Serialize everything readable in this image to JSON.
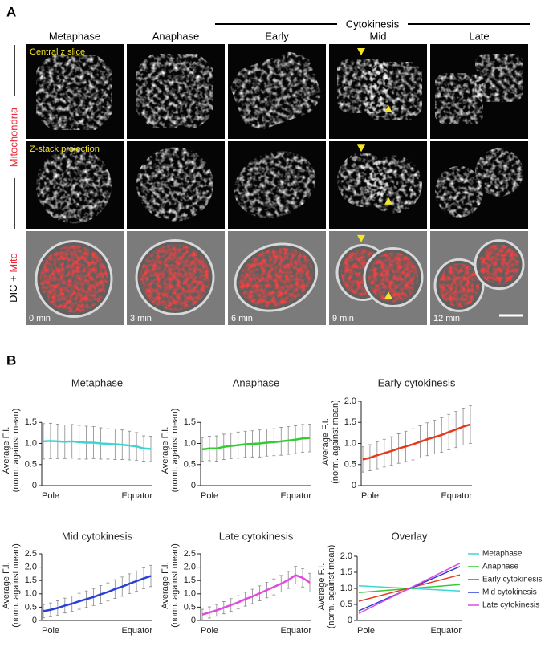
{
  "panel_a": {
    "label": "A",
    "group_label": "Cytokinesis",
    "columns": [
      "Metaphase",
      "Anaphase",
      "Early",
      "Mid",
      "Late"
    ],
    "row_label_mito": "Mitochondria",
    "row_label_dic": "DIC +",
    "row_label_dic_mito": "Mito",
    "overlay_labels": [
      "Central z slice",
      "Z-stack projection"
    ],
    "times": [
      "0 min",
      "3 min",
      "6 min",
      "9 min",
      "12 min"
    ]
  },
  "panel_b": {
    "label": "B"
  },
  "chart_data": [
    {
      "type": "line",
      "title": "Metaphase",
      "ylabel": [
        "Average F.I.",
        "(norm. against mean)"
      ],
      "x_start_label": "Pole",
      "x_end_label": "Equator",
      "ylim": [
        0,
        1.6
      ],
      "yticks": [
        0,
        0.5,
        {
          "value": 1,
          "label": "1.0"
        },
        1.5
      ],
      "series": [
        {
          "name": "Metaphase",
          "color": "#3fd4d4",
          "values": [
            1.05,
            1.06,
            1.05,
            1.04,
            1.05,
            1.03,
            1.02,
            1.02,
            1.0,
            0.99,
            0.98,
            0.97,
            0.95,
            0.93,
            0.88,
            0.87
          ],
          "errors": [
            0.42,
            0.42,
            0.41,
            0.4,
            0.4,
            0.4,
            0.39,
            0.38,
            0.37,
            0.36,
            0.36,
            0.35,
            0.34,
            0.33,
            0.3,
            0.3
          ]
        }
      ]
    },
    {
      "type": "line",
      "title": "Anaphase",
      "ylabel": [
        "Average F.I.",
        "(norm. against mean)"
      ],
      "x_start_label": "Pole",
      "x_end_label": "Equator",
      "ylim": [
        0,
        1.6
      ],
      "yticks": [
        0,
        0.5,
        {
          "value": 1,
          "label": "1.0"
        },
        1.5
      ],
      "series": [
        {
          "name": "Anaphase",
          "color": "#33cc33",
          "values": [
            0.86,
            0.88,
            0.88,
            0.92,
            0.94,
            0.96,
            0.98,
            0.99,
            1.0,
            1.02,
            1.03,
            1.05,
            1.07,
            1.09,
            1.12,
            1.13
          ],
          "errors": [
            0.28,
            0.29,
            0.3,
            0.3,
            0.3,
            0.31,
            0.31,
            0.31,
            0.32,
            0.32,
            0.32,
            0.33,
            0.33,
            0.33,
            0.33,
            0.33
          ]
        }
      ]
    },
    {
      "type": "line",
      "title": "Early cytokinesis",
      "ylabel": [
        "Average F.I.",
        "(norm. against mean)"
      ],
      "x_start_label": "Pole",
      "x_end_label": "Equator",
      "ylim": [
        0,
        2
      ],
      "yticks": [
        0,
        0.5,
        {
          "value": 1,
          "label": "1.0"
        },
        1.5,
        {
          "value": 2,
          "label": "2.0"
        }
      ],
      "series": [
        {
          "name": "Early cytokinesis",
          "color": "#e53a1e",
          "values": [
            0.62,
            0.66,
            0.72,
            0.77,
            0.82,
            0.88,
            0.93,
            0.98,
            1.04,
            1.1,
            1.15,
            1.2,
            1.27,
            1.33,
            1.4,
            1.45
          ],
          "errors": [
            0.3,
            0.31,
            0.32,
            0.33,
            0.34,
            0.35,
            0.36,
            0.37,
            0.38,
            0.39,
            0.4,
            0.41,
            0.42,
            0.43,
            0.44,
            0.45
          ]
        }
      ]
    },
    {
      "type": "line",
      "title": "Mid cytokinesis",
      "ylabel": [
        "Average F.I.",
        "(norm. against mean)"
      ],
      "x_start_label": "Pole",
      "x_end_label": "Equator",
      "ylim": [
        0,
        2.5
      ],
      "yticks": [
        0,
        0.5,
        {
          "value": 1,
          "label": "1.0"
        },
        1.5,
        {
          "value": 2,
          "label": "2.0"
        },
        2.5
      ],
      "series": [
        {
          "name": "Mid cytokinesis",
          "color": "#2a3fd8",
          "values": [
            0.35,
            0.4,
            0.47,
            0.56,
            0.63,
            0.72,
            0.8,
            0.88,
            0.98,
            1.07,
            1.18,
            1.27,
            1.38,
            1.48,
            1.58,
            1.67
          ],
          "errors": [
            0.25,
            0.26,
            0.27,
            0.28,
            0.29,
            0.3,
            0.31,
            0.32,
            0.33,
            0.34,
            0.35,
            0.36,
            0.37,
            0.38,
            0.39,
            0.4
          ]
        }
      ]
    },
    {
      "type": "line",
      "title": "Late cytokinesis",
      "ylabel": [
        "Average F.I.",
        "(norm. against mean)"
      ],
      "x_start_label": "Pole",
      "x_end_label": "Equator",
      "ylim": [
        0,
        2.5
      ],
      "yticks": [
        0,
        0.5,
        {
          "value": 1,
          "label": "1.0"
        },
        1.5,
        {
          "value": 2,
          "label": "2.0"
        },
        2.5
      ],
      "series": [
        {
          "name": "Late cytokinesis",
          "color": "#e04ae0",
          "values": [
            0.22,
            0.3,
            0.38,
            0.48,
            0.58,
            0.68,
            0.8,
            0.9,
            1.02,
            1.14,
            1.26,
            1.38,
            1.52,
            1.7,
            1.6,
            1.42
          ],
          "errors": [
            0.2,
            0.21,
            0.22,
            0.23,
            0.24,
            0.25,
            0.26,
            0.27,
            0.28,
            0.29,
            0.3,
            0.31,
            0.32,
            0.33,
            0.34,
            0.35
          ]
        }
      ]
    },
    {
      "type": "overlay",
      "title": "Overlay",
      "ylabel": [
        "Average F.I.",
        "(norm. against mean)"
      ],
      "x_start_label": "Pole",
      "x_end_label": "Equator",
      "ylim": [
        0,
        2
      ],
      "yticks": [
        0,
        0.5,
        {
          "value": 1,
          "label": "1.0"
        },
        1.5,
        {
          "value": 2,
          "label": "2.0"
        }
      ],
      "series": [
        {
          "name": "Metaphase",
          "color": "#3fd4d4",
          "values": [
            1.08,
            0.92
          ]
        },
        {
          "name": "Anaphase",
          "color": "#33cc33",
          "values": [
            0.87,
            1.12
          ]
        },
        {
          "name": "Early cytokinesis",
          "color": "#e53a1e",
          "values": [
            0.6,
            1.42
          ]
        },
        {
          "name": "Mid cytokinesis",
          "color": "#2a3fd8",
          "values": [
            0.3,
            1.68
          ]
        },
        {
          "name": "Late cytokinesis",
          "color": "#e04ae0",
          "values": [
            0.22,
            1.78
          ]
        }
      ]
    }
  ]
}
